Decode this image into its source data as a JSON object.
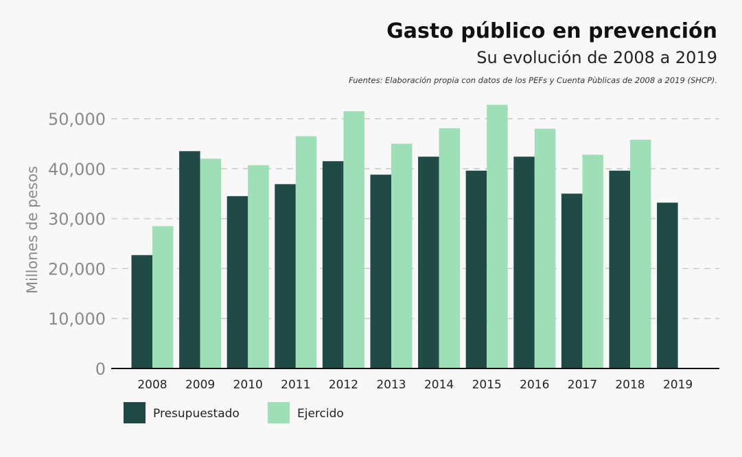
{
  "chart_data": {
    "type": "bar",
    "title": "Gasto público en prevención",
    "subtitle": "Su evolución de 2008 a 2019",
    "source": "Fuentes: Elaboración propia con datos de los PEFs y Cuenta Pùblicas de 2008 a 2019 (SHCP).",
    "xlabel": "",
    "ylabel": "Millones de pesos",
    "ylim": [
      0,
      50000
    ],
    "yticks": [
      0,
      10000,
      20000,
      30000,
      40000,
      50000
    ],
    "ytick_labels": [
      "0",
      "10,000",
      "20,000",
      "30,000",
      "40,000",
      "50,000"
    ],
    "grid": true,
    "legend_position": "bottom-left",
    "categories": [
      "2008",
      "2009",
      "2010",
      "2011",
      "2012",
      "2013",
      "2014",
      "2015",
      "2016",
      "2017",
      "2018",
      "2019"
    ],
    "series": [
      {
        "name": "Presupuestado",
        "color": "#1f4a46",
        "values": [
          22700,
          43500,
          34500,
          36900,
          41500,
          38800,
          42400,
          39600,
          42400,
          35000,
          39600,
          33200
        ]
      },
      {
        "name": "Ejercido",
        "color": "#9de0b8",
        "values": [
          28500,
          42000,
          40700,
          46500,
          51500,
          45000,
          48100,
          52800,
          48000,
          42800,
          45800,
          null
        ]
      }
    ]
  }
}
